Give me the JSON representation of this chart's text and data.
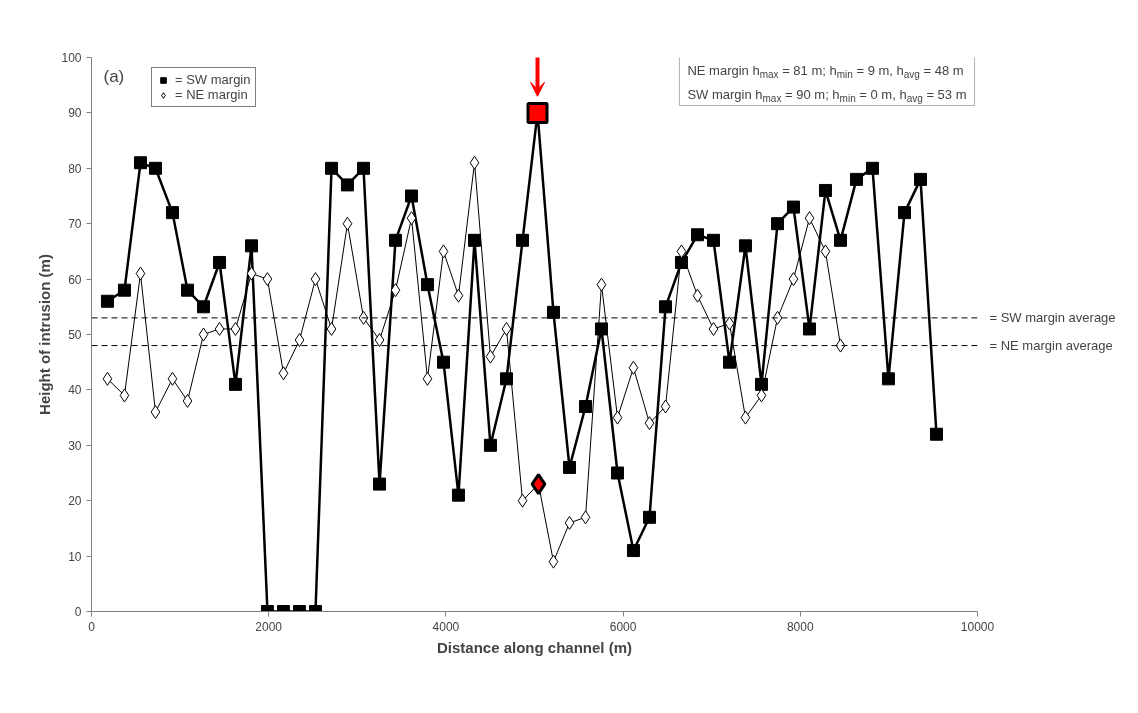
{
  "chart_data": {
    "type": "line",
    "xlabel": "Distance along channel (m)",
    "ylabel": "Height of intrusion (m)",
    "xlim": [
      0,
      10000
    ],
    "xticks": [
      0,
      2000,
      4000,
      6000,
      8000,
      10000
    ],
    "ylim": [
      0,
      100
    ],
    "yticks": [
      0,
      10,
      20,
      30,
      40,
      50,
      60,
      70,
      80,
      90,
      100
    ],
    "grid": false,
    "legend": "top left",
    "series": [
      {
        "name": "= SW margin",
        "marker": "square",
        "color": "#000000",
        "x": [
          180,
          372,
          553,
          722,
          914,
          1084,
          1264,
          1445,
          1625,
          1806,
          1986,
          2167,
          2348,
          2528,
          2709,
          2889,
          3070,
          3251,
          3431,
          3612,
          3792,
          3973,
          4142,
          4323,
          4503,
          4684,
          4865,
          5034,
          5214,
          5395,
          5576,
          5756,
          5937,
          6117,
          6298,
          6479,
          6659,
          6840,
          7020,
          7201,
          7381,
          7562,
          7743,
          7923,
          8104,
          8284,
          8454,
          8634,
          8815,
          8995,
          9176,
          9357,
          9537
        ],
        "values": [
          56,
          58,
          81,
          80,
          72,
          58,
          55,
          63,
          41,
          66,
          0,
          0,
          0,
          0,
          80,
          77,
          80,
          23,
          67,
          75,
          59,
          45,
          21,
          67,
          30,
          42,
          67,
          90,
          54,
          26,
          37,
          51,
          25,
          11,
          17,
          55,
          63,
          68,
          67,
          45,
          66,
          41,
          70,
          73,
          51,
          76,
          67,
          78,
          80,
          42,
          72,
          78,
          32
        ],
        "colors": [
          "#000000",
          "#000000",
          "#000000",
          "#000000",
          "#000000",
          "#000000",
          "#000000",
          "#000000",
          "#000000",
          "#000000",
          "#000000",
          "#000000",
          "#000000",
          "#000000",
          "#000000",
          "#000000",
          "#000000",
          "#000000",
          "#000000",
          "#000000",
          "#000000",
          "#000000",
          "#000000",
          "#000000",
          "#000000",
          "#000000",
          "#000000",
          "#ff0000",
          "#000000",
          "#000000",
          "#000000",
          "#000000",
          "#000000",
          "#000000",
          "#000000",
          "#000000",
          "#000000",
          "#000000",
          "#000000",
          "#000000",
          "#000000",
          "#000000",
          "#000000",
          "#000000",
          "#000000",
          "#000000",
          "#000000",
          "#000000",
          "#000000",
          "#000000",
          "#000000",
          "#000000",
          "#000000"
        ]
      },
      {
        "name": "= NE margin",
        "marker": "diamond",
        "color": "#000000",
        "x": [
          180,
          372,
          553,
          722,
          914,
          1084,
          1264,
          1445,
          1625,
          1806,
          1986,
          2167,
          2348,
          2528,
          2709,
          2889,
          3070,
          3251,
          3431,
          3612,
          3792,
          3973,
          4142,
          4323,
          4503,
          4684,
          4865,
          5045,
          5214,
          5395,
          5576,
          5756,
          5937,
          6117,
          6298,
          6479,
          6659,
          6840,
          7020,
          7201,
          7381,
          7562,
          7743,
          7923,
          8104,
          8284,
          8454
        ],
        "values": [
          42,
          39,
          61,
          36,
          42,
          38,
          50,
          51,
          51,
          61,
          60,
          43,
          49,
          60,
          51,
          70,
          53,
          49,
          58,
          71,
          42,
          65,
          57,
          81,
          46,
          51,
          20,
          23,
          9,
          16,
          17,
          59,
          35,
          44,
          34,
          37,
          65,
          57,
          51,
          52,
          35,
          39,
          53,
          60,
          71,
          65,
          48
        ],
        "colors": [
          "#ffffff",
          "#ffffff",
          "#ffffff",
          "#ffffff",
          "#ffffff",
          "#ffffff",
          "#ffffff",
          "#ffffff",
          "#ffffff",
          "#ffffff",
          "#ffffff",
          "#ffffff",
          "#ffffff",
          "#ffffff",
          "#ffffff",
          "#ffffff",
          "#ffffff",
          "#ffffff",
          "#ffffff",
          "#ffffff",
          "#ffffff",
          "#ffffff",
          "#ffffff",
          "#ffffff",
          "#ffffff",
          "#ffffff",
          "#ffffff",
          "#ff0000",
          "#ffffff",
          "#ffffff",
          "#ffffff",
          "#ffffff",
          "#ffffff",
          "#ffffff",
          "#ffffff",
          "#ffffff",
          "#ffffff",
          "#ffffff",
          "#ffffff",
          "#ffffff",
          "#ffffff",
          "#ffffff",
          "#ffffff",
          "#ffffff",
          "#ffffff",
          "#ffffff",
          "#ffffff"
        ]
      }
    ],
    "ref_lines": [
      {
        "axis": "y",
        "value": 53,
        "label": "= SW margin average",
        "line_style": "dashed",
        "color": "#000000"
      },
      {
        "axis": "y",
        "value": 48,
        "label": "= NE margin average",
        "line_style": "dashed",
        "color": "#000000"
      }
    ],
    "annotations": [
      "(a)",
      "NE margin h$_{max}$ = 81 m; h$_{min}$ = 9 m, h$_{avg}$ = 48 m",
      "SW margin h$_{max}$ = 90 m; h$_{min}$ = 0 m, h$_{avg}$ = 53 m"
    ]
  }
}
